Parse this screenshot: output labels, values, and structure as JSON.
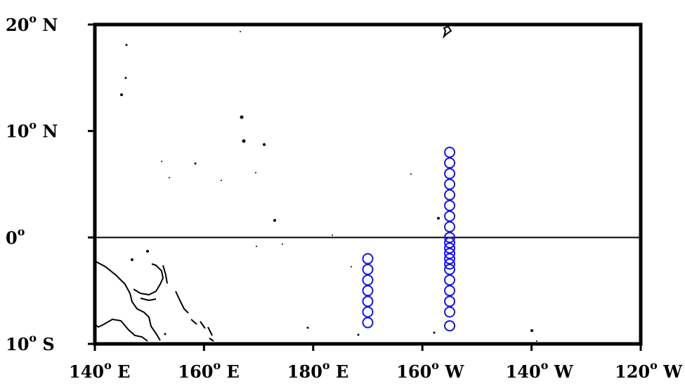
{
  "map": {
    "lat_ticks": [
      {
        "lat": 20,
        "label_num": "20",
        "label_deg": "o",
        "label_hemi": " N"
      },
      {
        "lat": 10,
        "label_num": "10",
        "label_deg": "o",
        "label_hemi": " N"
      },
      {
        "lat": 0,
        "label_num": "0",
        "label_deg": "o",
        "label_hemi": ""
      },
      {
        "lat": -10,
        "label_num": "10",
        "label_deg": "o",
        "label_hemi": " S"
      }
    ],
    "lon_ticks": [
      {
        "lon": 140,
        "label_num": "140",
        "label_deg": "o",
        "label_hemi": " E"
      },
      {
        "lon": 160,
        "label_num": "160",
        "label_deg": "o",
        "label_hemi": " E"
      },
      {
        "lon": 180,
        "label_num": "180",
        "label_deg": "o",
        "label_hemi": " E"
      },
      {
        "lon": 200,
        "label_num": "160",
        "label_deg": "o",
        "label_hemi": " W"
      },
      {
        "lon": 220,
        "label_num": "140",
        "label_deg": "o",
        "label_hemi": " W"
      },
      {
        "lon": 240,
        "label_num": "120",
        "label_deg": "o",
        "label_hemi": " W"
      }
    ],
    "extent": {
      "lon_min": 140,
      "lon_max": 240,
      "lat_min": -10,
      "lat_max": 20
    },
    "equator_line": true,
    "station_color": "#1515e0",
    "stations": {
      "line_170W": {
        "lon": 190,
        "lats": [
          -2,
          -3,
          -4,
          -5,
          -6,
          -7,
          -8
        ]
      },
      "line_155W": {
        "lon": 205,
        "lats": [
          8,
          7,
          6,
          5,
          4,
          3,
          2,
          1,
          0,
          -0.5,
          -1,
          -1.5,
          -2,
          -2.5,
          -3,
          -4,
          -5,
          -6,
          -7,
          -8.3
        ]
      }
    }
  }
}
